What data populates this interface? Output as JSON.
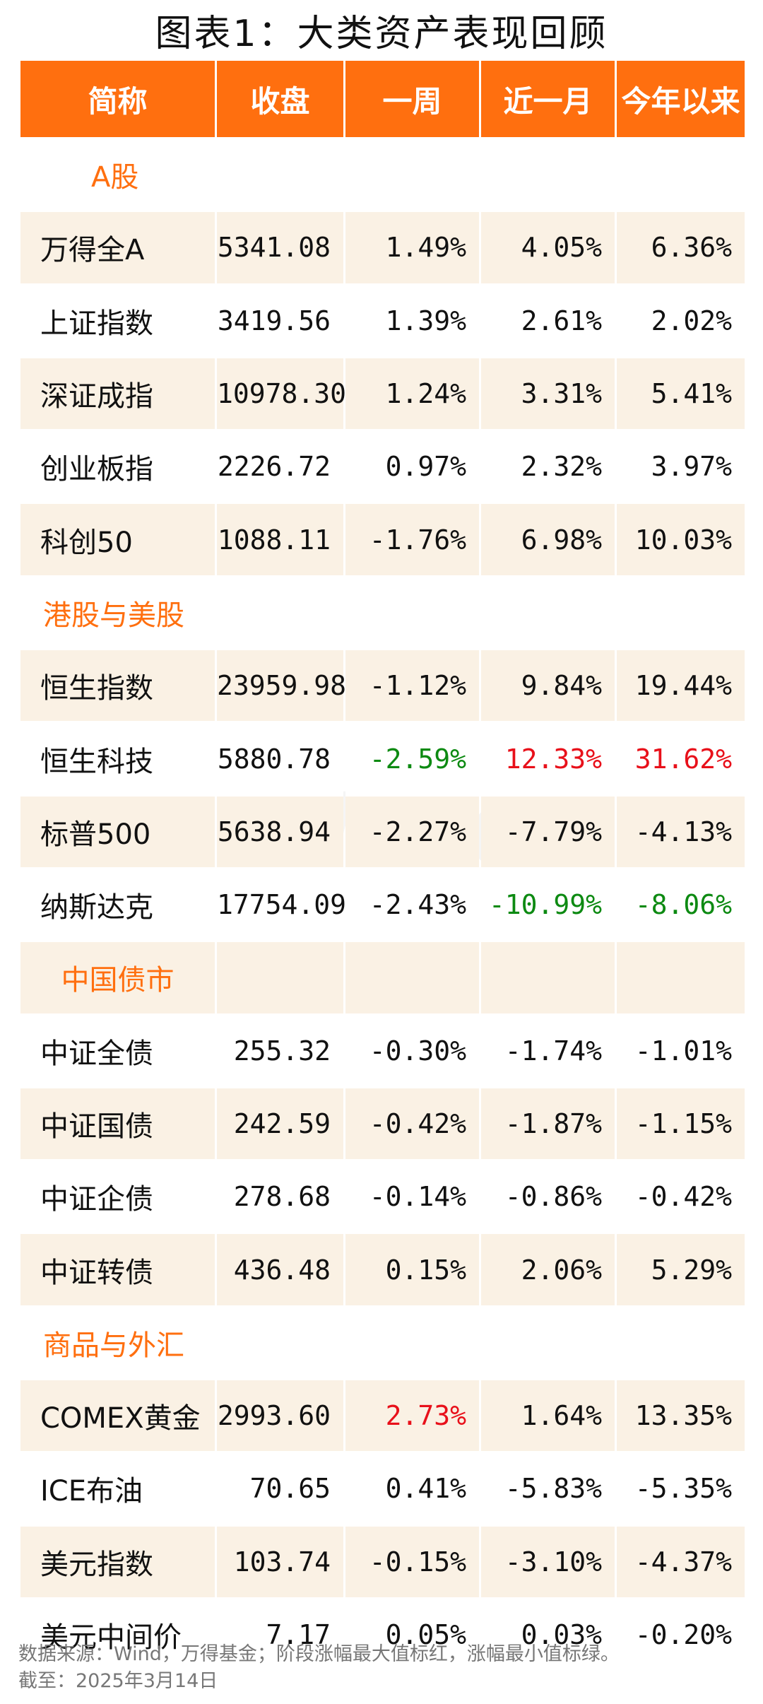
{
  "title": "图表1：大类资产表现回顾",
  "headers": [
    "简称",
    "收盘",
    "一周",
    "近一月",
    "今年以来"
  ],
  "sections": [
    {
      "name": "A股",
      "rows": [
        {
          "name": "万得全A",
          "close": "5341.08",
          "week": "1.49%",
          "month": "4.05%",
          "ytd": "6.36%"
        },
        {
          "name": "上证指数",
          "close": "3419.56",
          "week": "1.39%",
          "month": "2.61%",
          "ytd": "2.02%"
        },
        {
          "name": "深证成指",
          "close": "10978.30",
          "week": "1.24%",
          "month": "3.31%",
          "ytd": "5.41%"
        },
        {
          "name": "创业板指",
          "close": "2226.72",
          "week": "0.97%",
          "month": "2.32%",
          "ytd": "3.97%"
        },
        {
          "name": "科创50",
          "close": "1088.11",
          "week": "-1.76%",
          "month": "6.98%",
          "ytd": "10.03%"
        }
      ]
    },
    {
      "name": "港股与美股",
      "rows": [
        {
          "name": "恒生指数",
          "close": "23959.98",
          "week": "-1.12%",
          "month": "9.84%",
          "ytd": "19.44%"
        },
        {
          "name": "恒生科技",
          "close": "5880.78",
          "week": "-2.59%",
          "month": "12.33%",
          "ytd": "31.62%"
        },
        {
          "name": "标普500",
          "close": "5638.94",
          "week": "-2.27%",
          "month": "-7.79%",
          "ytd": "-4.13%"
        },
        {
          "name": "纳斯达克",
          "close": "17754.09",
          "week": "-2.43%",
          "month": "-10.99%",
          "ytd": "-8.06%"
        }
      ]
    },
    {
      "name": "中国债市",
      "rows": [
        {
          "name": "中证全债",
          "close": "255.32",
          "week": "-0.30%",
          "month": "-1.74%",
          "ytd": "-1.01%"
        },
        {
          "name": "中证国债",
          "close": "242.59",
          "week": "-0.42%",
          "month": "-1.87%",
          "ytd": "-1.15%"
        },
        {
          "name": "中证企债",
          "close": "278.68",
          "week": "-0.14%",
          "month": "-0.86%",
          "ytd": "-0.42%"
        },
        {
          "name": "中证转债",
          "close": "436.48",
          "week": "0.15%",
          "month": "2.06%",
          "ytd": "5.29%"
        }
      ]
    },
    {
      "name": "商品与外汇",
      "rows": [
        {
          "name": "COMEX黄金",
          "close": "2993.60",
          "week": "2.73%",
          "month": "1.64%",
          "ytd": "13.35%"
        },
        {
          "name": "ICE布油",
          "close": "70.65",
          "week": "0.41%",
          "month": "-5.83%",
          "ytd": "-5.35%"
        },
        {
          "name": "美元指数",
          "close": "103.74",
          "week": "-0.15%",
          "month": "-3.10%",
          "ytd": "-4.37%"
        },
        {
          "name": "美元中间价",
          "close": "7.17",
          "week": "0.05%",
          "month": "0.03%",
          "ytd": "-0.20%"
        }
      ]
    }
  ],
  "highlight_colors": {
    "max": "#e8101a",
    "min": "#0d8a12",
    "accent": "#ff6f0f"
  },
  "watermark": "Wind",
  "footer": {
    "source": "数据来源：Wind，万得基金；阶段涨幅最大值标红，涨幅最小值标绿。",
    "date": "截至：2025年3月14日"
  }
}
